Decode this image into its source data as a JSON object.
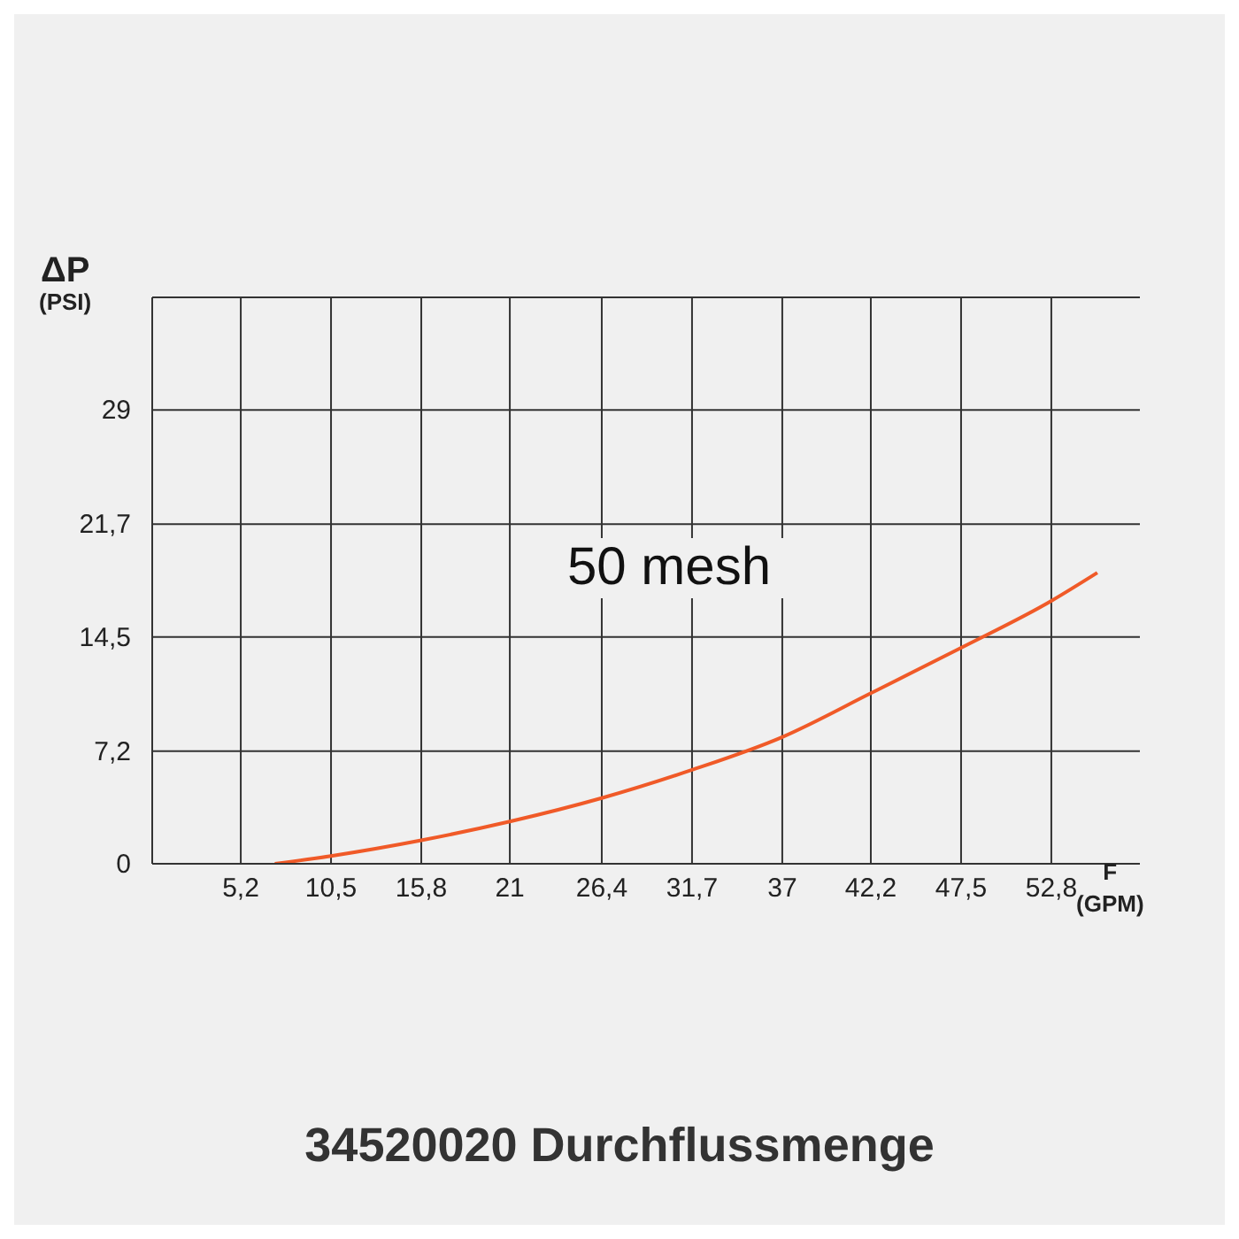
{
  "chart_data": {
    "type": "line",
    "title": "34520020 Durchflussmenge",
    "xlabel": "F (GPM)",
    "ylabel": "ΔP (PSI)",
    "annotations": [
      "50 mesh"
    ],
    "series": [
      {
        "color": "#f05a28",
        "x": [
          7.2,
          10.5,
          15.8,
          21,
          26.4,
          31.7,
          37,
          42.2,
          47.5,
          52.8,
          55.5
        ],
        "values": [
          0,
          0.5,
          1.5,
          2.7,
          4.2,
          6.0,
          8.1,
          10.9,
          13.8,
          16.8,
          18.6
        ]
      }
    ],
    "xlim": [
      0,
      58
    ],
    "xticks": [
      {
        "value": 5.2,
        "label": "5,2"
      },
      {
        "value": 10.5,
        "label": "10,5"
      },
      {
        "value": 15.8,
        "label": "15,8"
      },
      21,
      {
        "value": 26.4,
        "label": "26,4"
      },
      {
        "value": 31.7,
        "label": "31,7"
      },
      37,
      {
        "value": 42.2,
        "label": "42,2"
      },
      {
        "value": 47.5,
        "label": "47,5"
      },
      {
        "value": 52.8,
        "label": "52,8"
      }
    ],
    "ylim": [
      0,
      36.2
    ],
    "yticks": [
      0,
      {
        "value": 7.2,
        "label": "7,2"
      },
      {
        "value": 14.5,
        "label": "14,5"
      },
      {
        "value": 21.7,
        "label": "21,7"
      },
      29
    ],
    "grid": true,
    "legend": false,
    "marker": "none",
    "line_style": "solid"
  }
}
